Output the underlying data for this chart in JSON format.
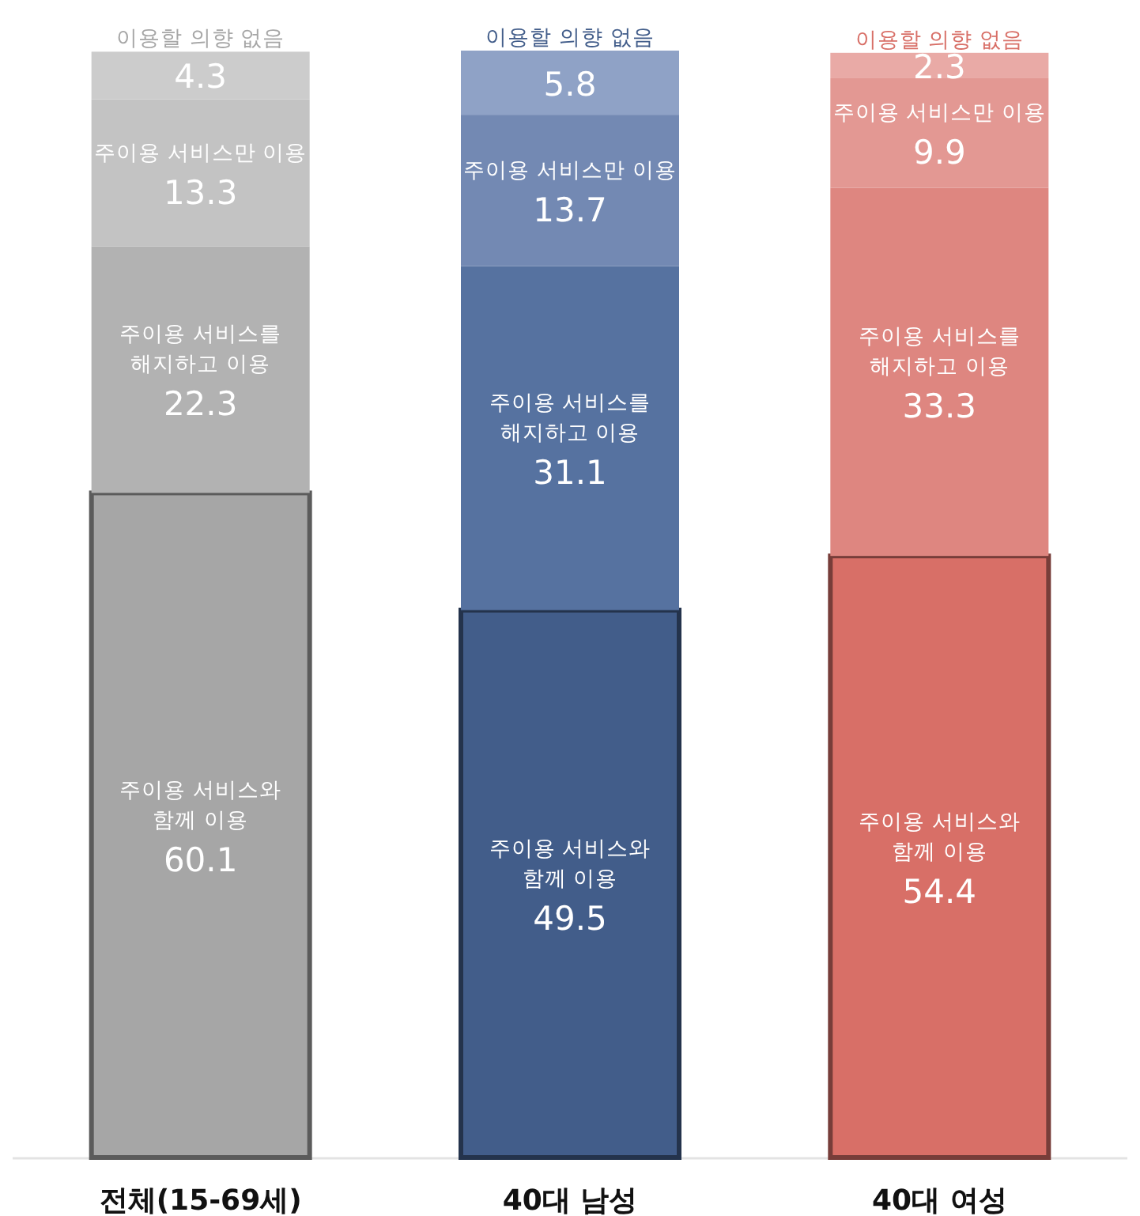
{
  "chart_data": {
    "type": "bar",
    "stacked": true,
    "data_labels": true,
    "categories": [
      "전체(15-69세)",
      "40대 남성",
      "40대 여성"
    ],
    "series": [
      {
        "name": "주이용 서비스와\n함께 이용",
        "colors": [
          "#a6a6a6",
          "#425d8a",
          "#d86f67"
        ],
        "values": [
          60.1,
          49.5,
          54.4
        ]
      },
      {
        "name": "주이용 서비스를\n해지하고 이용",
        "colors": [
          "#b2b2b2",
          "#5672a0",
          "#de8680"
        ],
        "values": [
          22.3,
          31.1,
          33.3
        ]
      },
      {
        "name": "주이용 서비스만 이용",
        "colors": [
          "#c3c3c3",
          "#7389b3",
          "#e39893"
        ],
        "values": [
          13.3,
          13.7,
          9.9
        ]
      },
      {
        "name": "이용할 의향 없음",
        "colors": [
          "#cccccc",
          "#8fa2c6",
          "#e9aaa6"
        ],
        "values": [
          4.3,
          5.8,
          2.3
        ]
      }
    ]
  }
}
